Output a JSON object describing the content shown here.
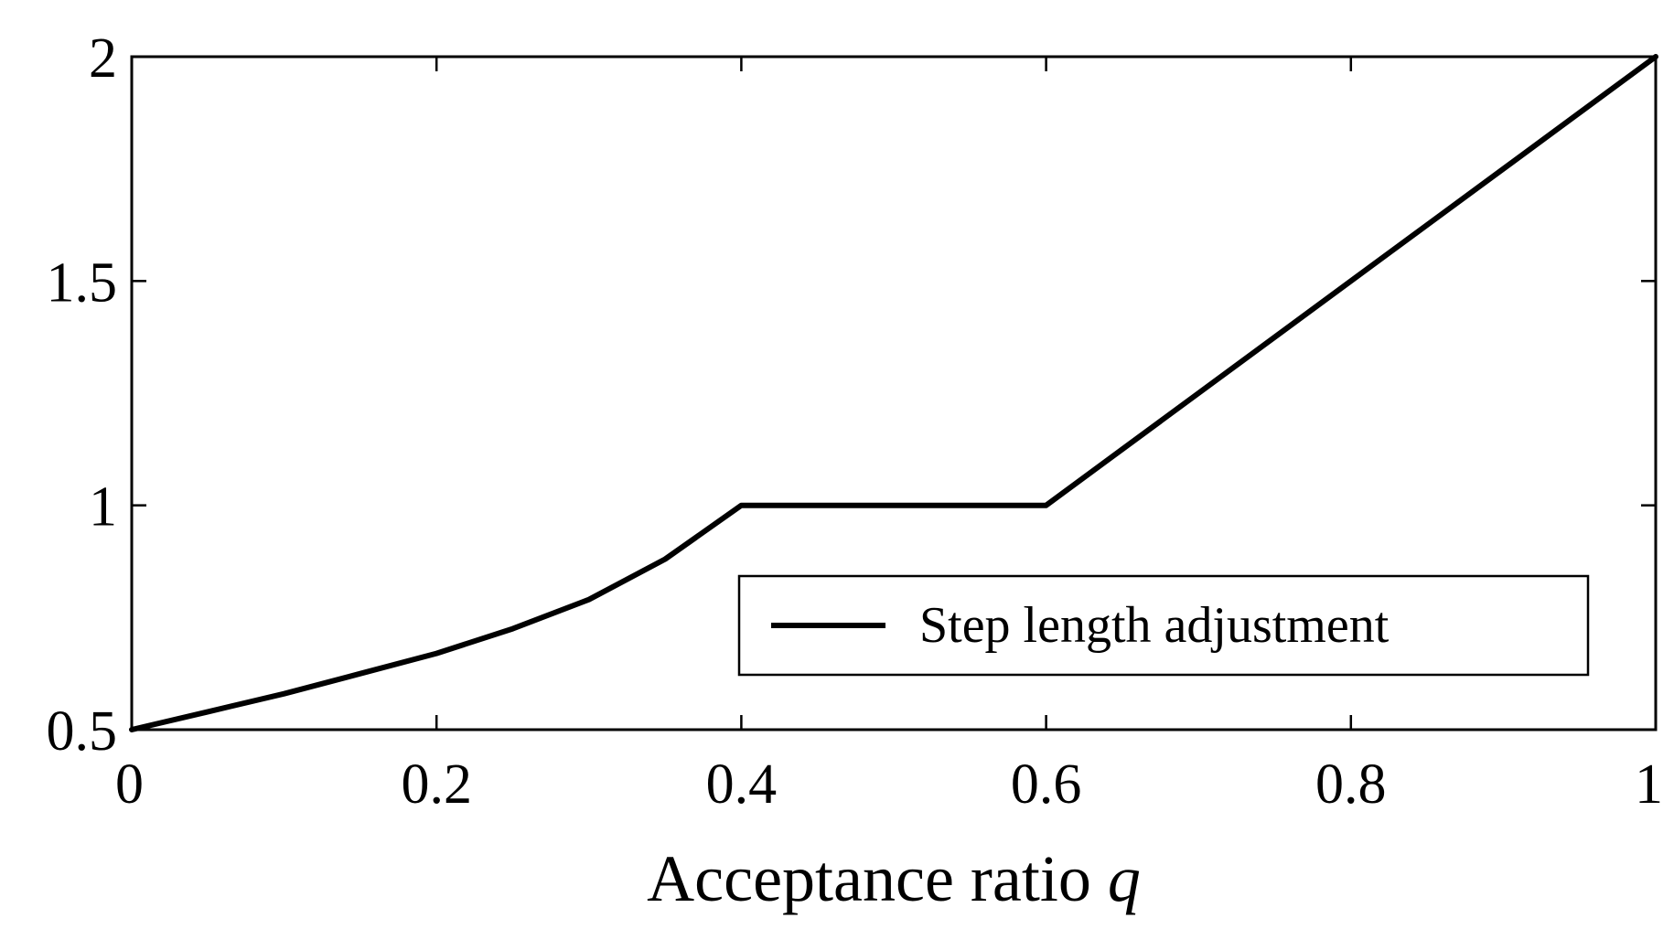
{
  "chart_data": {
    "type": "line",
    "title": "",
    "xlabel": "Acceptance ratio",
    "xlabel_var": "q",
    "ylabel": "",
    "xlim": [
      0,
      1
    ],
    "ylim": [
      0.5,
      2
    ],
    "x_ticks": [
      0,
      0.2,
      0.4,
      0.6,
      0.8,
      1
    ],
    "x_tick_labels": [
      "0",
      "0.2",
      "0.4",
      "0.6",
      "0.8",
      "1"
    ],
    "y_ticks": [
      0.5,
      1,
      1.5,
      2
    ],
    "y_tick_labels": [
      "0.5",
      "1",
      "1.5",
      "2"
    ],
    "grid": false,
    "legend_position": "lower-right",
    "series": [
      {
        "name": "Step length adjustment",
        "color": "#000000",
        "x": [
          0,
          0.05,
          0.1,
          0.15,
          0.2,
          0.25,
          0.3,
          0.35,
          0.4,
          0.45,
          0.5,
          0.55,
          0.6,
          0.65,
          0.7,
          0.75,
          0.8,
          0.85,
          0.9,
          0.95,
          1
        ],
        "y": [
          0.5,
          0.54,
          0.58,
          0.625,
          0.67,
          0.725,
          0.79,
          0.88,
          1,
          1,
          1,
          1,
          1,
          1.125,
          1.25,
          1.375,
          1.5,
          1.625,
          1.75,
          1.875,
          2
        ]
      }
    ]
  }
}
